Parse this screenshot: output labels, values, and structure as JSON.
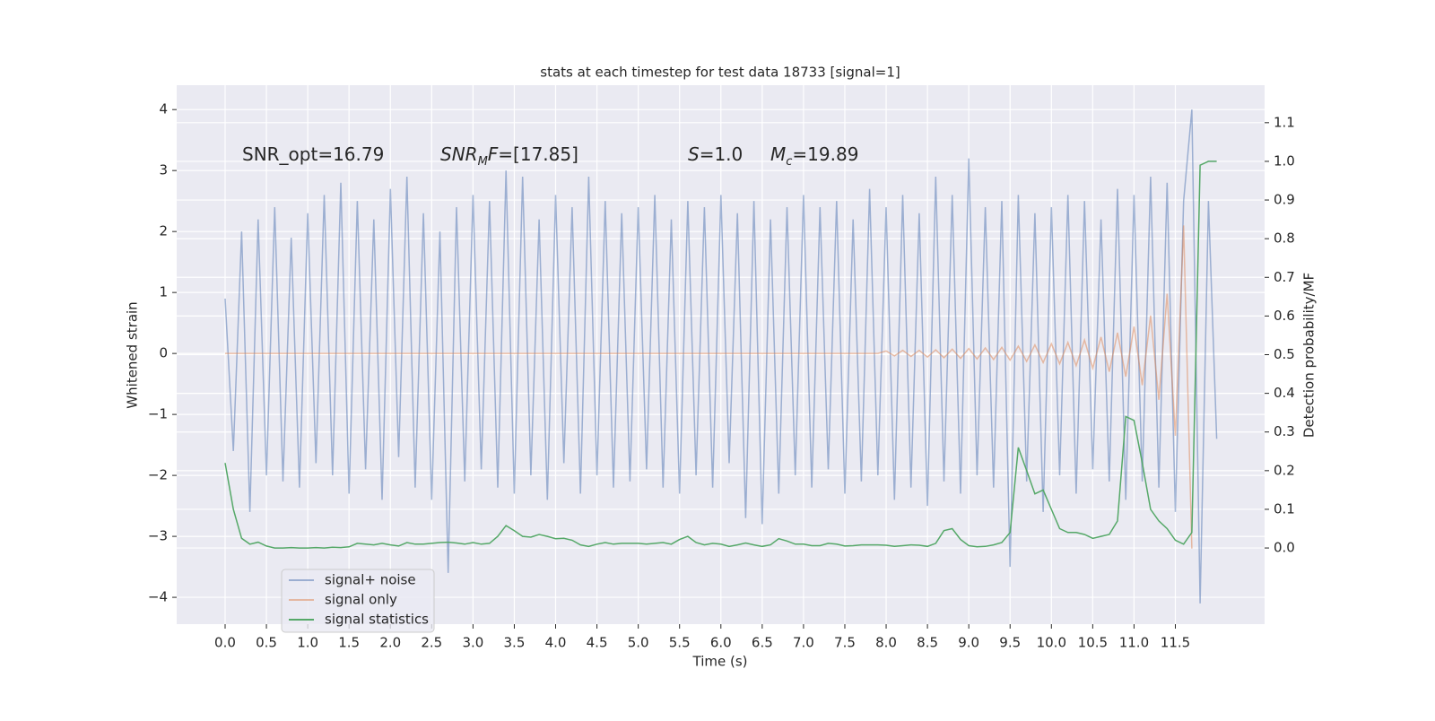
{
  "chart_data": {
    "type": "line",
    "title": "stats at each timestep for test data 18733 [signal=1]",
    "x_label": "Time (s)",
    "y_label": "Whitened strain",
    "y2_label": "Detection probability/MF",
    "grid": true,
    "legend": "lower left",
    "annotations": [
      {
        "parts": [
          {
            "text": "SNR_opt=16.79",
            "style": "normal"
          }
        ]
      },
      {
        "parts": [
          {
            "text": "SNR",
            "style": "italic"
          },
          {
            "text": "M",
            "style": "sub"
          },
          {
            "text": "F",
            "style": "italic"
          },
          {
            "text": "=[17.85]",
            "style": "normal"
          }
        ]
      },
      {
        "parts": [
          {
            "text": "S",
            "style": "italic"
          },
          {
            "text": "=1.0",
            "style": "normal"
          }
        ]
      },
      {
        "parts": [
          {
            "text": "M",
            "style": "italic"
          },
          {
            "text": "c",
            "style": "sub"
          },
          {
            "text": "=19.89",
            "style": "normal"
          }
        ]
      }
    ],
    "xlim": [
      -0.586,
      12.58
    ],
    "ylim": [
      -4.44,
      4.4
    ],
    "y2lim": [
      -0.197,
      1.197
    ],
    "xticks": [
      {
        "value": 0,
        "label": "0.0"
      },
      {
        "value": 0.5,
        "label": "0.5"
      },
      {
        "value": 1,
        "label": "1.0"
      },
      {
        "value": 1.5,
        "label": "1.5"
      },
      {
        "value": 2,
        "label": "2.0"
      },
      {
        "value": 2.5,
        "label": "2.5"
      },
      {
        "value": 3,
        "label": "3.0"
      },
      {
        "value": 3.5,
        "label": "3.5"
      },
      {
        "value": 4,
        "label": "4.0"
      },
      {
        "value": 4.5,
        "label": "4.5"
      },
      {
        "value": 5,
        "label": "5.0"
      },
      {
        "value": 5.5,
        "label": "5.5"
      },
      {
        "value": 6,
        "label": "6.0"
      },
      {
        "value": 6.5,
        "label": "6.5"
      },
      {
        "value": 7,
        "label": "7.0"
      },
      {
        "value": 7.5,
        "label": "7.5"
      },
      {
        "value": 8,
        "label": "8.0"
      },
      {
        "value": 8.5,
        "label": "8.5"
      },
      {
        "value": 9,
        "label": "9.0"
      },
      {
        "value": 9.5,
        "label": "9.5"
      },
      {
        "value": 10,
        "label": "10.0"
      },
      {
        "value": 10.5,
        "label": "10.5"
      },
      {
        "value": 11,
        "label": "11.0"
      },
      {
        "value": 11.5,
        "label": "11.5"
      }
    ],
    "yticks": [
      {
        "value": -4,
        "label": "−4"
      },
      {
        "value": -3,
        "label": "−3"
      },
      {
        "value": -2,
        "label": "−2"
      },
      {
        "value": -1,
        "label": "−1"
      },
      0,
      1,
      2,
      3,
      4
    ],
    "y2ticks": [
      {
        "value": 0,
        "label": "0.0"
      },
      {
        "value": 0.1,
        "label": "0.1"
      },
      {
        "value": 0.2,
        "label": "0.2"
      },
      {
        "value": 0.3,
        "label": "0.3"
      },
      {
        "value": 0.4,
        "label": "0.4"
      },
      {
        "value": 0.5,
        "label": "0.5"
      },
      {
        "value": 0.6,
        "label": "0.6"
      },
      {
        "value": 0.7,
        "label": "0.7"
      },
      {
        "value": 0.8,
        "label": "0.8"
      },
      {
        "value": 0.9,
        "label": "0.9"
      },
      {
        "value": 1,
        "label": "1.0"
      },
      {
        "value": 1.1,
        "label": "1.1"
      }
    ],
    "x": [
      0,
      0.1,
      0.2,
      0.3,
      0.4,
      0.5,
      0.6,
      0.7,
      0.8,
      0.9,
      1,
      1.1,
      1.2,
      1.3,
      1.4,
      1.5,
      1.6,
      1.7,
      1.8,
      1.9,
      2,
      2.1,
      2.2,
      2.3,
      2.4,
      2.5,
      2.6,
      2.7,
      2.8,
      2.9,
      3,
      3.1,
      3.2,
      3.3,
      3.4,
      3.5,
      3.6,
      3.7,
      3.8,
      3.9,
      4,
      4.1,
      4.2,
      4.3,
      4.4,
      4.5,
      4.6,
      4.7,
      4.8,
      4.9,
      5,
      5.1,
      5.2,
      5.3,
      5.4,
      5.5,
      5.6,
      5.7,
      5.8,
      5.9,
      6,
      6.1,
      6.2,
      6.3,
      6.4,
      6.5,
      6.6,
      6.7,
      6.8,
      6.9,
      7,
      7.1,
      7.2,
      7.3,
      7.4,
      7.5,
      7.6,
      7.7,
      7.8,
      7.9,
      8,
      8.1,
      8.2,
      8.3,
      8.4,
      8.5,
      8.6,
      8.7,
      8.8,
      8.9,
      9,
      9.1,
      9.2,
      9.3,
      9.4,
      9.5,
      9.6,
      9.7,
      9.8,
      9.9,
      10,
      10.1,
      10.2,
      10.3,
      10.4,
      10.5,
      10.6,
      10.7,
      10.8,
      10.9,
      11,
      11.1,
      11.2,
      11.3,
      11.4,
      11.5,
      11.6,
      11.7,
      11.8,
      11.9,
      12
    ],
    "series": [
      {
        "name": "signal+ noise",
        "color": "#4c72b0",
        "opacity": 0.5,
        "values": [
          0.9,
          -1.6,
          2.0,
          -2.6,
          2.2,
          -2.0,
          2.4,
          -2.1,
          1.9,
          -2.2,
          2.3,
          -1.8,
          2.6,
          -2.0,
          2.8,
          -2.3,
          2.5,
          -1.9,
          2.2,
          -2.4,
          2.7,
          -1.7,
          2.9,
          -2.2,
          2.3,
          -2.4,
          2.0,
          -3.6,
          2.4,
          -2.1,
          2.6,
          -1.9,
          2.5,
          -2.2,
          3.0,
          -2.3,
          2.9,
          -2.0,
          2.2,
          -2.4,
          2.6,
          -1.8,
          2.4,
          -2.3,
          2.9,
          -2.0,
          2.5,
          -2.2,
          2.3,
          -2.1,
          2.4,
          -1.9,
          2.6,
          -2.2,
          2.2,
          -2.3,
          2.5,
          -2.0,
          2.4,
          -2.2,
          2.6,
          -1.8,
          2.3,
          -2.7,
          2.5,
          -2.8,
          2.2,
          -2.3,
          2.4,
          -2.0,
          2.6,
          -2.2,
          2.4,
          -1.9,
          2.5,
          -2.3,
          2.2,
          -2.1,
          2.7,
          -2.0,
          2.4,
          -2.4,
          2.6,
          -2.2,
          2.3,
          -2.5,
          2.9,
          -2.1,
          2.6,
          -2.3,
          3.2,
          -2.0,
          2.4,
          -2.2,
          2.5,
          -3.5,
          2.6,
          -2.1,
          2.3,
          -2.6,
          2.4,
          -2.0,
          2.6,
          -2.3,
          2.5,
          -1.9,
          2.2,
          -2.1,
          2.7,
          -2.4,
          2.6,
          -2.1,
          2.9,
          -2.2,
          2.8,
          -2.6,
          2.5,
          4.0,
          -4.1,
          2.5,
          -1.4
        ]
      },
      {
        "name": "signal only",
        "color": "#dd8452",
        "opacity": 0.5,
        "values": [
          0,
          0,
          0,
          0,
          0,
          0,
          0,
          0,
          0,
          0,
          0,
          0,
          0,
          0,
          0,
          0,
          0,
          0,
          0,
          0,
          0,
          0,
          0,
          0,
          0,
          0,
          0,
          0,
          0,
          0,
          0,
          0,
          0,
          0,
          0,
          0,
          0,
          0,
          0,
          0,
          0,
          0,
          0,
          0,
          0,
          0,
          0,
          0,
          0,
          0,
          0,
          0,
          0,
          0,
          0,
          0,
          0,
          0,
          0,
          0,
          0,
          0,
          0,
          0,
          0,
          0,
          0,
          0,
          0,
          0,
          0,
          0,
          0,
          0,
          0,
          0,
          0,
          0,
          0,
          0,
          0.04,
          -0.04,
          0.05,
          -0.05,
          0.05,
          -0.06,
          0.06,
          -0.07,
          0.07,
          -0.08,
          0.08,
          -0.09,
          0.09,
          -0.1,
          0.1,
          -0.11,
          0.12,
          -0.13,
          0.14,
          -0.15,
          0.16,
          -0.17,
          0.18,
          -0.2,
          0.22,
          -0.24,
          0.27,
          -0.3,
          0.34,
          -0.38,
          0.44,
          -0.52,
          0.62,
          -0.76,
          0.98,
          -1.35,
          2.1,
          -3.2,
          null,
          null,
          null
        ]
      },
      {
        "name": "signal statistics",
        "color": "#55a868",
        "opacity": 1,
        "axis": "y2",
        "values": [
          0.22,
          0.1,
          0.025,
          0.01,
          0.015,
          0.005,
          0.0,
          0.0,
          0.001,
          0.0,
          0.0,
          0.001,
          0.0,
          0.002,
          0.001,
          0.003,
          0.012,
          0.01,
          0.008,
          0.012,
          0.008,
          0.005,
          0.014,
          0.01,
          0.01,
          0.012,
          0.014,
          0.015,
          0.013,
          0.01,
          0.014,
          0.01,
          0.012,
          0.03,
          0.058,
          0.045,
          0.03,
          0.028,
          0.035,
          0.03,
          0.024,
          0.025,
          0.02,
          0.008,
          0.004,
          0.01,
          0.014,
          0.01,
          0.012,
          0.012,
          0.012,
          0.01,
          0.012,
          0.014,
          0.01,
          0.022,
          0.03,
          0.014,
          0.008,
          0.012,
          0.01,
          0.004,
          0.008,
          0.013,
          0.008,
          0.004,
          0.008,
          0.024,
          0.018,
          0.01,
          0.01,
          0.006,
          0.006,
          0.012,
          0.01,
          0.005,
          0.006,
          0.008,
          0.008,
          0.008,
          0.007,
          0.004,
          0.006,
          0.008,
          0.007,
          0.004,
          0.012,
          0.045,
          0.05,
          0.022,
          0.006,
          0.003,
          0.004,
          0.008,
          0.014,
          0.04,
          0.26,
          0.2,
          0.14,
          0.15,
          0.1,
          0.05,
          0.04,
          0.04,
          0.035,
          0.025,
          0.03,
          0.035,
          0.07,
          0.34,
          0.33,
          0.22,
          0.1,
          0.07,
          0.05,
          0.02,
          0.01,
          0.04,
          0.99,
          1.0,
          1.0
        ]
      }
    ]
  }
}
